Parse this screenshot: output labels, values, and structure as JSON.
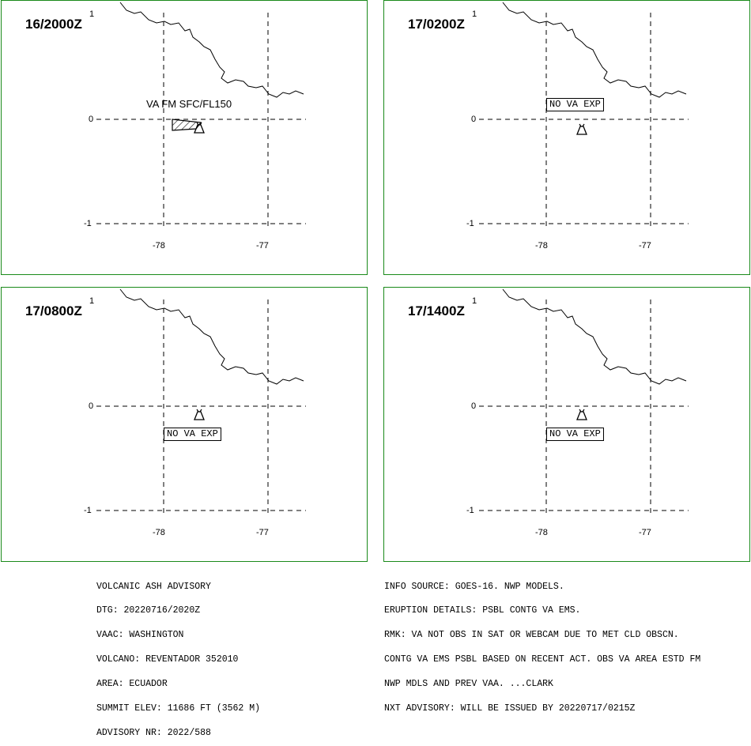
{
  "panels": [
    {
      "time": "16/2000Z",
      "va_text": "VA FM SFC/FL150",
      "has_ash": true,
      "nova": ""
    },
    {
      "time": "17/0200Z",
      "va_text": "",
      "has_ash": false,
      "nova": "NO VA EXP"
    },
    {
      "time": "17/0800Z",
      "va_text": "",
      "has_ash": false,
      "nova": "NO VA EXP"
    },
    {
      "time": "17/1400Z",
      "va_text": "",
      "has_ash": false,
      "nova": "NO VA EXP"
    }
  ],
  "axes": {
    "lat_ticks": [
      "1",
      "0",
      "-1"
    ],
    "lon_ticks": [
      "-78",
      "-77"
    ]
  },
  "advisory": {
    "left": [
      "VOLCANIC ASH ADVISORY",
      "DTG: 20220716/2020Z",
      "VAAC: WASHINGTON",
      "VOLCANO: REVENTADOR 352010",
      "AREA: ECUADOR",
      "SUMMIT ELEV: 11686 FT (3562 M)",
      "ADVISORY NR: 2022/588"
    ],
    "right": [
      "INFO SOURCE: GOES-16. NWP MODELS.",
      "ERUPTION DETAILS: PSBL CONTG VA EMS.",
      "RMK: VA NOT OBS IN SAT OR WEBCAM DUE TO MET CLD OBSCN.",
      "CONTG VA EMS PSBL BASED ON RECENT ACT. OBS VA AREA ESTD FM",
      "NWP MDLS AND PREV VAA. ...CLARK",
      "NXT ADVISORY: WILL BE ISSUED BY 20220717/0215Z"
    ]
  },
  "colors": {
    "border": "#1a8a1a",
    "ink": "#000000"
  }
}
